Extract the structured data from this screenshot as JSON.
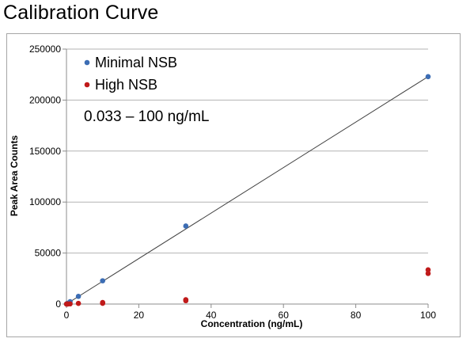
{
  "page": {
    "title": "Calibration Curve"
  },
  "chart_data": {
    "type": "scatter",
    "xlabel": "Concentration (ng/mL)",
    "ylabel": "Peak Area Counts",
    "xlim": [
      0,
      100
    ],
    "ylim": [
      0,
      250000
    ],
    "x_ticks": [
      0,
      20,
      40,
      60,
      80,
      100
    ],
    "y_ticks": [
      0,
      50000,
      100000,
      150000,
      200000,
      250000
    ],
    "grid": "horizontal",
    "legend_position": "top-left",
    "annotation": "0.033 – 100 ng/mL",
    "series": [
      {
        "name": "Minimal NSB",
        "color": "#3c6db4",
        "points": [
          {
            "x": 0.033,
            "y": 80
          },
          {
            "x": 0.1,
            "y": 230
          },
          {
            "x": 0.33,
            "y": 760
          },
          {
            "x": 1,
            "y": 2300
          },
          {
            "x": 3.3,
            "y": 7500
          },
          {
            "x": 10,
            "y": 22800
          },
          {
            "x": 33,
            "y": 76500
          },
          {
            "x": 100,
            "y": 223000
          }
        ]
      },
      {
        "name": "High NSB",
        "color": "#c01a1a",
        "points": [
          {
            "x": 0.033,
            "y": 0
          },
          {
            "x": 0.1,
            "y": 20
          },
          {
            "x": 0.33,
            "y": 60
          },
          {
            "x": 1,
            "y": 200
          },
          {
            "x": 3.3,
            "y": 600
          },
          {
            "x": 10,
            "y": 1500
          },
          {
            "x": 10,
            "y": 700
          },
          {
            "x": 33,
            "y": 4200
          },
          {
            "x": 33,
            "y": 3300
          },
          {
            "x": 100,
            "y": 33500
          },
          {
            "x": 100,
            "y": 30000
          }
        ]
      }
    ],
    "trendline": {
      "series": "Minimal NSB",
      "x": [
        0,
        100
      ],
      "y": [
        0,
        223000
      ],
      "color": "#404040"
    }
  }
}
